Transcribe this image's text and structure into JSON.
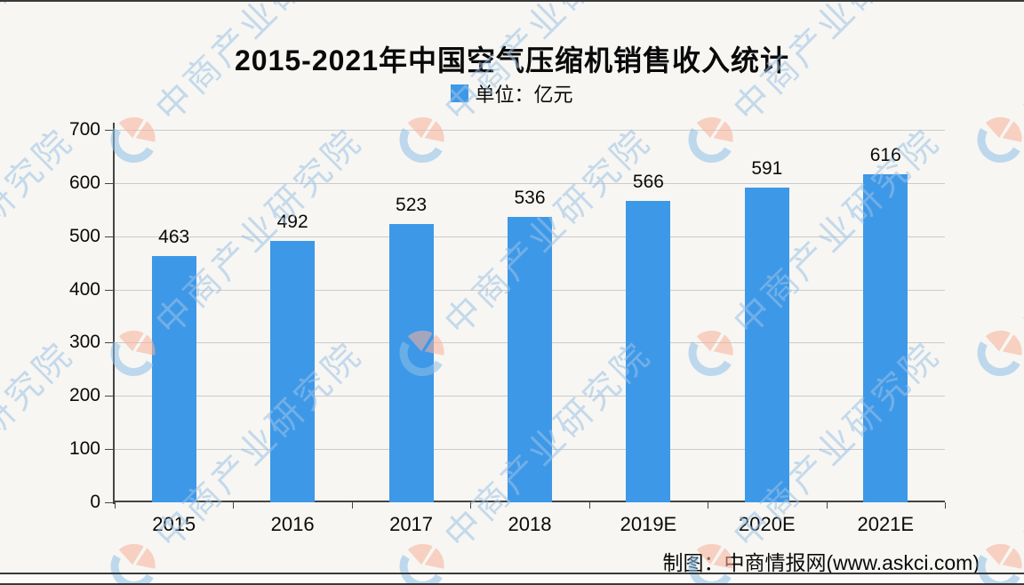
{
  "chart_data": {
    "type": "bar",
    "title": "2015-2021年中国空气压缩机销售收入统计",
    "legend_label": "单位：亿元",
    "legend_position": "top-center",
    "categories": [
      "2015",
      "2016",
      "2017",
      "2018",
      "2019E",
      "2020E",
      "2021E"
    ],
    "values": [
      463,
      492,
      523,
      536,
      566,
      591,
      616
    ],
    "ylim": [
      0,
      700
    ],
    "yticks": [
      0,
      100,
      200,
      300,
      400,
      500,
      600,
      700
    ],
    "grid": true,
    "bar_color": "#3D98E8"
  },
  "footer": {
    "credit": "制图：中商情报网(www.askci.com)"
  },
  "watermark": {
    "text": "中商产业研究院",
    "logo_name": "askci-logo",
    "text_color": "#9cc2e6",
    "logo_blue": "#8fc0e8",
    "logo_salmon": "#f7b29a"
  },
  "colors": {
    "background": "#f7f6f2",
    "gridline": "#cbcbcb",
    "axis": "#444444",
    "border": "#3a3a3a"
  }
}
